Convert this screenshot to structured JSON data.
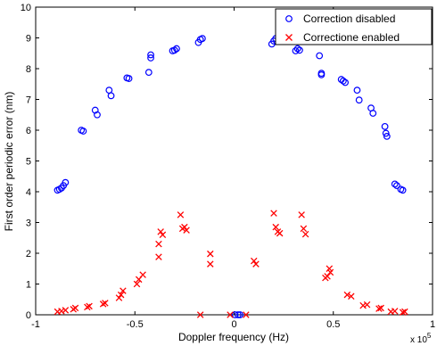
{
  "chart_data": {
    "type": "scatter",
    "xlabel": "Doppler frequency (Hz)",
    "ylabel": "First order periodic error (nm)",
    "x_multiplier_label": "x 10",
    "x_multiplier_exponent": "5",
    "xlim": [
      -1,
      1
    ],
    "ylim": [
      0,
      10
    ],
    "xticks": [
      -1,
      -0.5,
      0,
      0.5,
      1
    ],
    "xtick_labels": [
      "-1",
      "-0.5",
      "0",
      "0.5",
      "1"
    ],
    "yticks": [
      0,
      1,
      2,
      3,
      4,
      5,
      6,
      7,
      8,
      9,
      10
    ],
    "ytick_labels": [
      "0",
      "1",
      "2",
      "3",
      "4",
      "5",
      "6",
      "7",
      "8",
      "9",
      "10"
    ],
    "grid": false,
    "legend_position": "top-right",
    "series": [
      {
        "name": "Correction disabled",
        "marker": "circle",
        "color": "#0000ff",
        "points": [
          [
            -0.89,
            4.05
          ],
          [
            -0.88,
            4.08
          ],
          [
            -0.87,
            4.12
          ],
          [
            -0.86,
            4.2
          ],
          [
            -0.85,
            4.3
          ],
          [
            -0.77,
            6.0
          ],
          [
            -0.76,
            5.97
          ],
          [
            -0.7,
            6.65
          ],
          [
            -0.69,
            6.5
          ],
          [
            -0.63,
            7.3
          ],
          [
            -0.62,
            7.12
          ],
          [
            -0.54,
            7.7
          ],
          [
            -0.53,
            7.68
          ],
          [
            -0.43,
            7.88
          ],
          [
            -0.42,
            8.35
          ],
          [
            -0.42,
            8.45
          ],
          [
            -0.31,
            8.58
          ],
          [
            -0.3,
            8.6
          ],
          [
            -0.29,
            8.65
          ],
          [
            -0.18,
            8.85
          ],
          [
            -0.17,
            8.95
          ],
          [
            -0.16,
            8.98
          ],
          [
            0.005,
            0.0
          ],
          [
            0.02,
            0.0
          ],
          [
            0.03,
            0.0
          ],
          [
            0.19,
            8.8
          ],
          [
            0.2,
            8.9
          ],
          [
            0.21,
            8.98
          ],
          [
            0.31,
            8.58
          ],
          [
            0.32,
            8.65
          ],
          [
            0.33,
            8.6
          ],
          [
            0.43,
            8.42
          ],
          [
            0.44,
            7.85
          ],
          [
            0.44,
            7.8
          ],
          [
            0.54,
            7.65
          ],
          [
            0.55,
            7.6
          ],
          [
            0.56,
            7.55
          ],
          [
            0.62,
            7.3
          ],
          [
            0.63,
            6.98
          ],
          [
            0.69,
            6.72
          ],
          [
            0.7,
            6.55
          ],
          [
            0.76,
            6.12
          ],
          [
            0.765,
            5.9
          ],
          [
            0.77,
            5.8
          ],
          [
            0.81,
            4.25
          ],
          [
            0.82,
            4.2
          ],
          [
            0.84,
            4.08
          ],
          [
            0.85,
            4.05
          ]
        ]
      },
      {
        "name": "Correctione enabled",
        "marker": "x",
        "color": "#ff0000",
        "points": [
          [
            -0.89,
            0.1
          ],
          [
            -0.87,
            0.12
          ],
          [
            -0.85,
            0.15
          ],
          [
            -0.81,
            0.18
          ],
          [
            -0.8,
            0.22
          ],
          [
            -0.74,
            0.25
          ],
          [
            -0.73,
            0.28
          ],
          [
            -0.66,
            0.35
          ],
          [
            -0.65,
            0.38
          ],
          [
            -0.58,
            0.55
          ],
          [
            -0.57,
            0.65
          ],
          [
            -0.56,
            0.78
          ],
          [
            -0.49,
            1.0
          ],
          [
            -0.48,
            1.15
          ],
          [
            -0.46,
            1.3
          ],
          [
            -0.38,
            1.88
          ],
          [
            -0.38,
            2.3
          ],
          [
            -0.37,
            2.7
          ],
          [
            -0.36,
            2.6
          ],
          [
            -0.27,
            3.25
          ],
          [
            -0.26,
            2.8
          ],
          [
            -0.25,
            2.85
          ],
          [
            -0.24,
            2.75
          ],
          [
            -0.17,
            0.0
          ],
          [
            -0.12,
            1.98
          ],
          [
            -0.12,
            1.65
          ],
          [
            -0.02,
            0.0
          ],
          [
            0.06,
            0.0
          ],
          [
            0.1,
            1.75
          ],
          [
            0.11,
            1.65
          ],
          [
            0.2,
            3.3
          ],
          [
            0.21,
            2.85
          ],
          [
            0.22,
            2.7
          ],
          [
            0.23,
            2.65
          ],
          [
            0.34,
            3.25
          ],
          [
            0.35,
            2.8
          ],
          [
            0.36,
            2.62
          ],
          [
            0.46,
            1.2
          ],
          [
            0.47,
            1.25
          ],
          [
            0.48,
            1.5
          ],
          [
            0.485,
            1.38
          ],
          [
            0.57,
            0.65
          ],
          [
            0.59,
            0.6
          ],
          [
            0.65,
            0.3
          ],
          [
            0.67,
            0.33
          ],
          [
            0.73,
            0.2
          ],
          [
            0.74,
            0.22
          ],
          [
            0.79,
            0.1
          ],
          [
            0.81,
            0.12
          ],
          [
            0.85,
            0.08
          ],
          [
            0.86,
            0.1
          ]
        ]
      }
    ]
  }
}
